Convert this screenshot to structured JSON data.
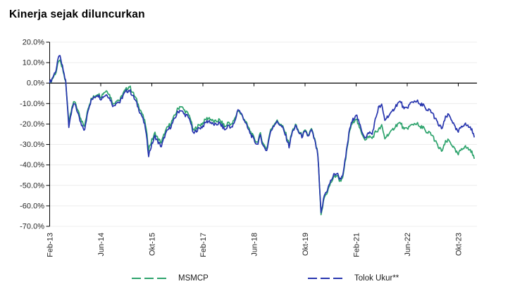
{
  "title": "Kinerja sejak diluncurkan",
  "colors": {
    "msmcp": "#2DA36C",
    "benchmark": "#2735AE",
    "gridline": "#ECECEC",
    "axis": "#000000",
    "tick_label": "#262626"
  },
  "legend": {
    "items": [
      {
        "label": "MSMCP",
        "color": "#2DA36C"
      },
      {
        "label": "Tolok Ukur**",
        "color": "#2735AE"
      }
    ],
    "position": "bottom"
  },
  "chart_data": {
    "type": "line",
    "title": "Kinerja sejak diluncurkan",
    "xlabel": "",
    "ylabel": "",
    "ylim": [
      -70,
      20
    ],
    "y_tick_step": 10,
    "y_tick_labels": [
      "20.0%",
      "10.0%",
      "0.0%",
      "-10.0%",
      "-20.0%",
      "-30.0%",
      "-40.0%",
      "-50.0%",
      "-60.0%",
      "-70.0%"
    ],
    "grid": true,
    "zero_axis_highlighted": true,
    "legend_position": "bottom",
    "x_unit": "month",
    "x_range_note": "monthly values from Feb-2013 to Mar-2024, percent return since launch",
    "x_tick_labels": [
      "Feb-13",
      "Jun-14",
      "Okt-15",
      "Feb-17",
      "Jun-18",
      "Okt-19",
      "Feb-21",
      "Jun-22",
      "Okt-23"
    ],
    "x_tick_indices": [
      0,
      16,
      32,
      48,
      64,
      80,
      96,
      112,
      128
    ],
    "series": [
      {
        "name": "MSMCP",
        "color": "#2DA36C",
        "values": [
          0,
          2.5,
          5.5,
          11.5,
          7,
          0.5,
          -19,
          -11,
          -9,
          -14.5,
          -19,
          -21,
          -12,
          -8,
          -6.5,
          -5,
          -6.5,
          -4.5,
          -3.5,
          -6.5,
          -10.5,
          -8,
          -8.5,
          -5,
          -3,
          -1.5,
          -4.5,
          -7.5,
          -11.5,
          -15,
          -20,
          -32,
          -28,
          -24.5,
          -27.5,
          -29,
          -24.5,
          -21.5,
          -19.5,
          -16.5,
          -13,
          -11,
          -13,
          -14.5,
          -16.5,
          -23.5,
          -21.5,
          -20.5,
          -19.5,
          -17.5,
          -17,
          -18.5,
          -19,
          -18,
          -19.5,
          -21.5,
          -19,
          -20.5,
          -17.5,
          -13,
          -15.5,
          -17.5,
          -21,
          -24,
          -27,
          -29,
          -25,
          -30,
          -32,
          -24,
          -20.5,
          -18.5,
          -19.5,
          -21.5,
          -25,
          -30,
          -23.5,
          -20.5,
          -23.5,
          -25.5,
          -23.5,
          -25.5,
          -22.5,
          -27.5,
          -34.5,
          -65,
          -56,
          -53,
          -49,
          -46,
          -45,
          -48,
          -45,
          -34,
          -23,
          -19,
          -17,
          -22,
          -25,
          -28,
          -26,
          -27,
          -24,
          -23,
          -21,
          -27,
          -25,
          -24,
          -21.5,
          -20,
          -19.5,
          -23,
          -22,
          -21,
          -20,
          -19.5,
          -22,
          -21,
          -25,
          -24,
          -26,
          -29,
          -32,
          -33,
          -29,
          -28,
          -30,
          -33,
          -35,
          -32,
          -31,
          -32,
          -33,
          -37
        ]
      },
      {
        "name": "Tolok Ukur**",
        "color": "#2735AE",
        "values": [
          0,
          3,
          6.5,
          14,
          8,
          1,
          -21,
          -12,
          -10,
          -16,
          -21,
          -23,
          -13,
          -8.5,
          -7,
          -5.5,
          -7.5,
          -6.3,
          -5.5,
          -8,
          -11.5,
          -9,
          -9.5,
          -6,
          -4,
          -3.5,
          -6,
          -9,
          -13,
          -16.5,
          -22,
          -35,
          -30,
          -26,
          -29,
          -31,
          -26,
          -23,
          -21,
          -18,
          -14.5,
          -13,
          -15,
          -16,
          -18,
          -25,
          -23,
          -22,
          -21,
          -19,
          -18.5,
          -20,
          -20.5,
          -19.5,
          -21,
          -23,
          -20.5,
          -22,
          -19,
          -12.5,
          -15,
          -18,
          -22,
          -25,
          -28,
          -30,
          -26,
          -31,
          -33,
          -25,
          -21,
          -19,
          -20,
          -22,
          -26,
          -31,
          -24,
          -21,
          -24,
          -26,
          -24,
          -26,
          -23,
          -28,
          -35,
          -64,
          -55,
          -52,
          -48,
          -45,
          -44,
          -47,
          -44,
          -33,
          -22,
          -18,
          -15,
          -20,
          -24,
          -27,
          -24,
          -25,
          -18,
          -12,
          -11,
          -18,
          -16,
          -15,
          -12,
          -10,
          -9,
          -13,
          -12,
          -10,
          -9,
          -8.5,
          -11,
          -10,
          -14,
          -13,
          -15,
          -18,
          -21,
          -22,
          -17,
          -15.5,
          -18,
          -22,
          -24,
          -21,
          -20,
          -21,
          -22,
          -26.5
        ]
      }
    ]
  }
}
